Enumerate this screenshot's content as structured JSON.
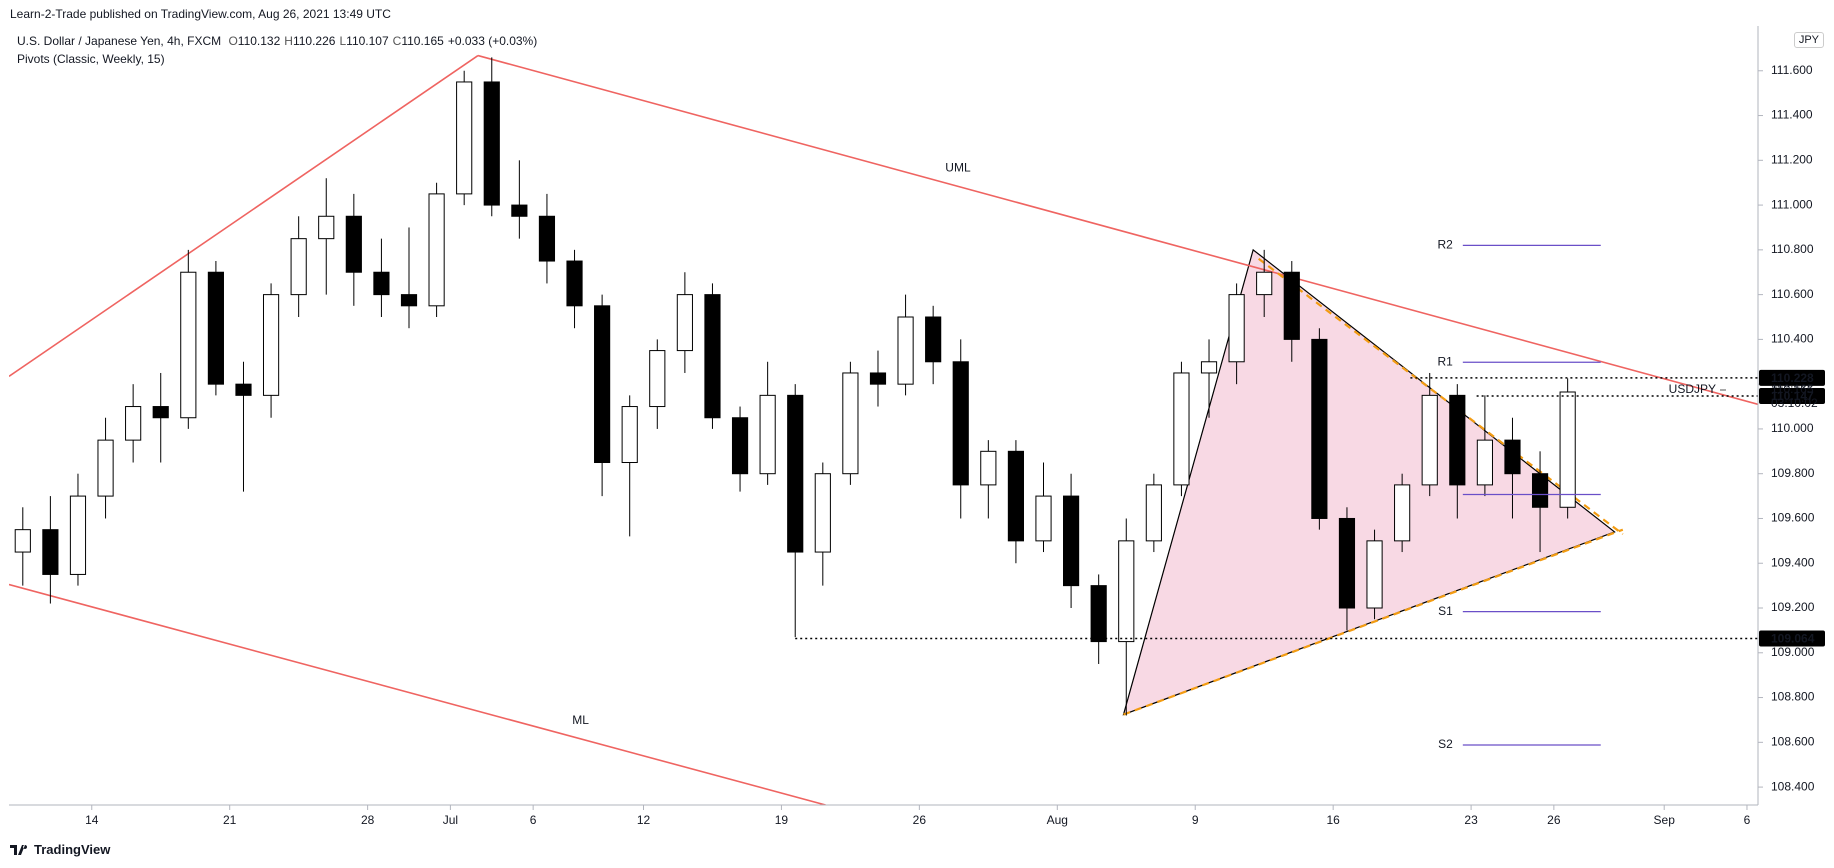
{
  "header": {
    "publisher": "Learn-2-Trade published on TradingView.com, Aug 26, 2021 13:49 UTC",
    "symbol": "U.S. Dollar / Japanese Yen, 4h, FXCM",
    "ohlc": [
      {
        "key": "O",
        "value": 110.132
      },
      {
        "key": "H",
        "value": 110.226
      },
      {
        "key": "L",
        "value": 110.107
      },
      {
        "key": "C",
        "value": 110.165
      }
    ],
    "change": "+0.033 (+0.03%)",
    "indicator": "Pivots (Classic, Weekly, 15)",
    "currency": "JPY"
  },
  "chart_data": {
    "type": "candlestick",
    "x": [
      -2.5,
      -1.5,
      -0.5,
      0.5,
      1.5,
      2.5,
      3.5,
      4.5,
      5.5,
      6.5,
      7.5,
      8.5,
      9.5,
      10.5,
      11.5,
      12.5,
      13.5,
      14.5,
      15.5,
      16.5,
      17.5,
      18.5,
      19.5,
      20.5,
      21.5,
      22.5,
      23.5,
      24.5,
      25.5,
      26.5,
      27.5,
      28.5,
      29.5,
      30.5,
      31.5,
      32.5,
      33.5,
      34.5,
      35.5,
      36.5,
      37.5,
      38.5,
      39.5,
      40.5,
      41.5,
      42.5,
      43.5,
      44.5,
      45.5,
      46.5,
      47.5,
      48.5,
      49.5,
      50.5,
      51.5,
      52.5,
      53.5
    ],
    "open": [
      109.45,
      109.55,
      109.35,
      109.7,
      109.95,
      110.1,
      110.05,
      110.7,
      110.2,
      110.15,
      110.6,
      110.85,
      110.95,
      110.7,
      110.6,
      110.55,
      111.05,
      111.55,
      111.0,
      110.95,
      110.75,
      110.55,
      109.85,
      110.1,
      110.35,
      110.6,
      110.05,
      109.8,
      110.15,
      109.45,
      109.8,
      110.25,
      110.2,
      110.5,
      110.3,
      109.75,
      109.9,
      109.5,
      109.7,
      109.3,
      109.05,
      109.5,
      109.75,
      110.25,
      110.3,
      110.6,
      110.7,
      110.4,
      109.6,
      109.2,
      109.5,
      109.75,
      110.15,
      109.75,
      109.95,
      109.8,
      109.65
    ],
    "high": [
      109.65,
      109.7,
      109.8,
      110.05,
      110.2,
      110.25,
      110.8,
      110.75,
      110.3,
      110.65,
      110.95,
      111.12,
      111.05,
      110.85,
      110.9,
      111.1,
      111.6,
      111.66,
      111.2,
      111.05,
      110.8,
      110.6,
      110.15,
      110.4,
      110.7,
      110.65,
      110.1,
      110.3,
      110.2,
      109.85,
      110.3,
      110.35,
      110.6,
      110.55,
      110.4,
      109.95,
      109.95,
      109.85,
      109.8,
      109.35,
      109.6,
      109.8,
      110.3,
      110.4,
      110.65,
      110.8,
      110.75,
      110.45,
      109.65,
      109.55,
      109.8,
      110.25,
      110.2,
      110.15,
      110.05,
      109.9,
      110.226
    ],
    "low": [
      109.3,
      109.22,
      109.3,
      109.6,
      109.85,
      109.85,
      110.0,
      110.15,
      109.72,
      110.05,
      110.5,
      110.6,
      110.55,
      110.5,
      110.45,
      110.5,
      111.0,
      110.95,
      110.85,
      110.65,
      110.45,
      109.7,
      109.52,
      110.0,
      110.25,
      110.0,
      109.72,
      109.75,
      109.07,
      109.3,
      109.75,
      110.1,
      110.15,
      110.2,
      109.6,
      109.6,
      109.4,
      109.45,
      109.2,
      108.95,
      108.72,
      109.45,
      109.7,
      110.05,
      110.2,
      110.5,
      110.3,
      109.55,
      109.1,
      109.15,
      109.45,
      109.7,
      109.6,
      109.7,
      109.6,
      109.45,
      109.6
    ],
    "close": [
      109.55,
      109.35,
      109.7,
      109.95,
      110.1,
      110.05,
      110.7,
      110.2,
      110.15,
      110.6,
      110.85,
      110.95,
      110.7,
      110.6,
      110.55,
      111.05,
      111.55,
      111.0,
      110.95,
      110.75,
      110.55,
      109.85,
      110.1,
      110.35,
      110.6,
      110.05,
      109.8,
      110.15,
      109.45,
      109.8,
      110.25,
      110.2,
      110.5,
      110.3,
      109.75,
      109.9,
      109.5,
      109.7,
      109.3,
      109.05,
      109.5,
      109.75,
      110.25,
      110.3,
      110.6,
      110.7,
      110.4,
      109.6,
      109.2,
      109.5,
      109.75,
      110.15,
      109.75,
      109.95,
      109.8,
      109.65,
      110.165
    ],
    "up_color": "#ffffff",
    "down_color": "#000000",
    "wick_color": "#000000",
    "xlim": [
      -3,
      60.4
    ],
    "xticks": [
      {
        "value": 0,
        "label": "14"
      },
      {
        "value": 5,
        "label": "21"
      },
      {
        "value": 10,
        "label": "28"
      },
      {
        "value": 13,
        "label": "Jul"
      },
      {
        "value": 16,
        "label": "6"
      },
      {
        "value": 20,
        "label": "12"
      },
      {
        "value": 25,
        "label": "19"
      },
      {
        "value": 30,
        "label": "26"
      },
      {
        "value": 35,
        "label": "Aug"
      },
      {
        "value": 40,
        "label": "9"
      },
      {
        "value": 45,
        "label": "16"
      },
      {
        "value": 50,
        "label": "23"
      },
      {
        "value": 53,
        "label": "26"
      },
      {
        "value": 57,
        "label": "Sep"
      },
      {
        "value": 60,
        "label": "6"
      }
    ],
    "ylim": [
      108.32,
      111.8
    ],
    "yticks": [
      {
        "value": 108.4,
        "label": "108.400"
      },
      {
        "value": 108.6,
        "label": "108.600"
      },
      {
        "value": 108.8,
        "label": "108.800"
      },
      {
        "value": 109.0,
        "label": "109.000"
      },
      {
        "value": 109.2,
        "label": "109.200"
      },
      {
        "value": 109.4,
        "label": "109.400"
      },
      {
        "value": 109.6,
        "label": "109.600"
      },
      {
        "value": 109.8,
        "label": "109.800"
      },
      {
        "value": 110.0,
        "label": "110.000"
      },
      {
        "value": 110.2,
        "label": "110.200"
      },
      {
        "value": 110.4,
        "label": "110.400"
      },
      {
        "value": 110.6,
        "label": "110.600"
      },
      {
        "value": 110.8,
        "label": "110.800"
      },
      {
        "value": 111.0,
        "label": "111.000"
      },
      {
        "value": 111.2,
        "label": "111.200"
      },
      {
        "value": 111.4,
        "label": "111.400"
      },
      {
        "value": 111.6,
        "label": "111.600"
      }
    ],
    "grid": false,
    "pattern": {
      "x": [
        37.4,
        42.1,
        55.2
      ],
      "y": [
        108.724,
        110.8,
        109.54
      ],
      "color": "#f8d9e4"
    },
    "trendlines": [
      {
        "x": [
          -3,
          14
        ],
        "y": [
          110.235,
          111.668
        ],
        "color": "#ef6461"
      },
      {
        "x": [
          14,
          60.4
        ],
        "y": [
          111.668,
          110.11
        ],
        "color": "#ef6461",
        "label": "UML"
      },
      {
        "x": [
          -3,
          26.6
        ],
        "y": [
          109.305,
          108.32
        ],
        "color": "#ef6461",
        "label": "ML"
      },
      {
        "x": [
          42.3,
          55.5
        ],
        "y": [
          110.76,
          109.53
        ],
        "color": "#f39c12",
        "dashed": true
      },
      {
        "x": [
          37.4,
          55.5
        ],
        "y": [
          108.724,
          109.55
        ],
        "color": "#f39c12",
        "dashed": true
      }
    ],
    "pivots": {
      "x": [
        49.7,
        54.7
      ],
      "color": "#6a4fc8",
      "levels": [
        {
          "label": "R2",
          "value": 110.82
        },
        {
          "label": "R1",
          "value": 110.298
        },
        {
          "label": null,
          "value": 109.707
        },
        {
          "label": "S1",
          "value": 109.184
        },
        {
          "label": "S2",
          "value": 108.588
        }
      ]
    },
    "levels": [
      {
        "value": 110.228,
        "from": 47.8
      },
      {
        "value": 110.147,
        "from": 50.2
      },
      {
        "value": 109.064,
        "from": 25.5
      }
    ],
    "last": {
      "name": "USDJPY",
      "value": 110.165,
      "countdown": "03:10:02"
    }
  },
  "footer": "TradingView"
}
